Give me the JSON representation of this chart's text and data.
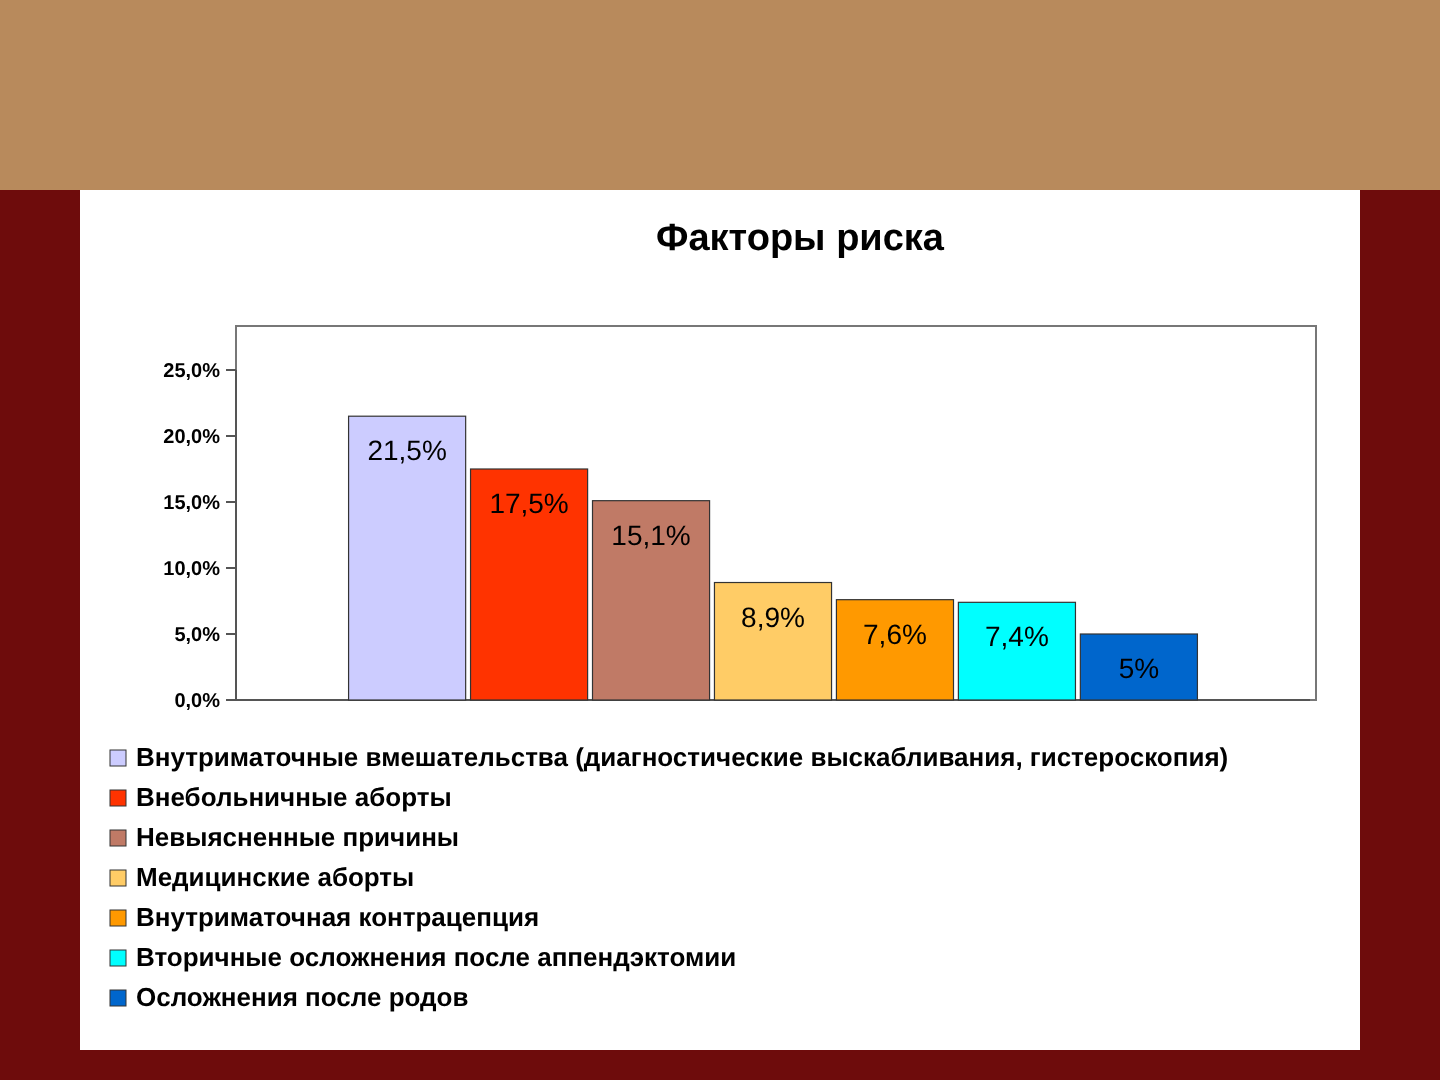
{
  "chart_data": {
    "type": "bar",
    "title": "Факторы риска",
    "categories": [
      null
    ],
    "series": [
      {
        "name": "Внутриматочные вмешательства (диагностические выскабливания, гистероскопия)",
        "color": "#ccccff",
        "values": [
          21.5
        ],
        "value_labels": [
          "21,5%"
        ]
      },
      {
        "name": "Внебольничные аборты",
        "color": "#ff3300",
        "values": [
          17.5
        ],
        "value_labels": [
          "17,5%"
        ]
      },
      {
        "name": "Невыясненные причины",
        "color": "#c07a66",
        "values": [
          15.1
        ],
        "value_labels": [
          "15,1%"
        ]
      },
      {
        "name": "Медицинские аборты",
        "color": "#ffcc66",
        "values": [
          8.9
        ],
        "value_labels": [
          "8,9%"
        ]
      },
      {
        "name": "Внутриматочная контрацепция",
        "color": "#ff9900",
        "values": [
          7.6
        ],
        "value_labels": [
          "7,6%"
        ]
      },
      {
        "name": "Вторичные осложнения после аппендэктомии",
        "color": "#00ffff",
        "values": [
          7.4
        ],
        "value_labels": [
          "7,4%"
        ]
      },
      {
        "name": "Осложнения после родов",
        "color": "#0066cc",
        "values": [
          5
        ],
        "value_labels": [
          "5%"
        ]
      }
    ],
    "ylim": [
      0,
      25
    ],
    "yticks": [
      {
        "value": 0,
        "label": "0,0%"
      },
      {
        "value": 5,
        "label": "5,0%"
      },
      {
        "value": 10,
        "label": "10,0%"
      },
      {
        "value": 15,
        "label": "15,0%"
      },
      {
        "value": 20,
        "label": "20,0%"
      },
      {
        "value": 25,
        "label": "25,0%"
      }
    ],
    "grid": false,
    "legend": "bottom"
  }
}
